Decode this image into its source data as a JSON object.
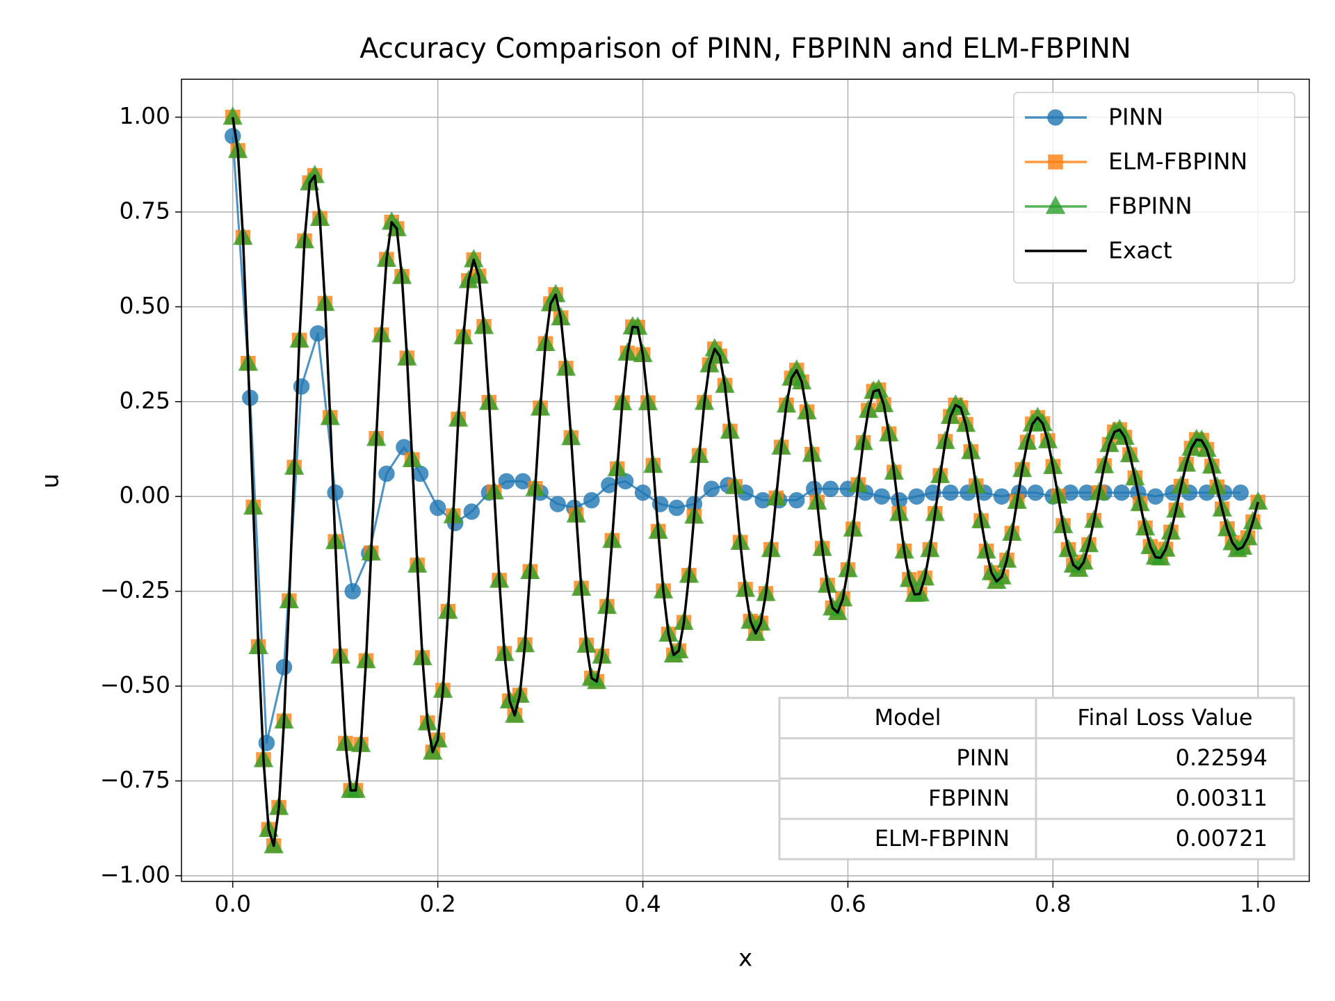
{
  "chart_data": {
    "type": "line",
    "title": "Accuracy Comparison of PINN, FBPINN and ELM-FBPINN",
    "xlabel": "x",
    "ylabel": "u",
    "xlim": [
      -0.05,
      1.05
    ],
    "ylim": [
      -1.015,
      1.1
    ],
    "xticks": [
      {
        "value": 0,
        "label": "0.0"
      },
      {
        "value": 0.2,
        "label": "0.2"
      },
      {
        "value": 0.4,
        "label": "0.4"
      },
      {
        "value": 0.6,
        "label": "0.6"
      },
      {
        "value": 0.8,
        "label": "0.8"
      },
      {
        "value": 1,
        "label": "1.0"
      }
    ],
    "yticks": [
      {
        "value": -1,
        "label": "−1.00"
      },
      {
        "value": -0.75,
        "label": "−0.75"
      },
      {
        "value": -0.5,
        "label": "−0.50"
      },
      {
        "value": -0.25,
        "label": "−0.25"
      },
      {
        "value": 0,
        "label": "0.00"
      },
      {
        "value": 0.25,
        "label": "0.25"
      },
      {
        "value": 0.5,
        "label": "0.50"
      },
      {
        "value": 0.75,
        "label": "0.75"
      },
      {
        "value": 1,
        "label": "1.00"
      }
    ],
    "grid": true,
    "legend": "upper right",
    "x": [
      0,
      0.005,
      0.01,
      0.015,
      0.02,
      0.025,
      0.03,
      0.035,
      0.04,
      0.045,
      0.05,
      0.055,
      0.06,
      0.065,
      0.07,
      0.075,
      0.08,
      0.085,
      0.09,
      0.095,
      0.1,
      0.105,
      0.11,
      0.115,
      0.12,
      0.125,
      0.13,
      0.135,
      0.14,
      0.145,
      0.15,
      0.155,
      0.16,
      0.165,
      0.17,
      0.175,
      0.18,
      0.185,
      0.19,
      0.195,
      0.2,
      0.205,
      0.21,
      0.215,
      0.22,
      0.225,
      0.23,
      0.235,
      0.24,
      0.245,
      0.25,
      0.255,
      0.26,
      0.265,
      0.27,
      0.275,
      0.28,
      0.285,
      0.29,
      0.295,
      0.3,
      0.305,
      0.31,
      0.315,
      0.32,
      0.325,
      0.33,
      0.335,
      0.34,
      0.345,
      0.35,
      0.355,
      0.36,
      0.365,
      0.37,
      0.375,
      0.38,
      0.385,
      0.39,
      0.395,
      0.4,
      0.405,
      0.41,
      0.415,
      0.42,
      0.425,
      0.43,
      0.435,
      0.44,
      0.445,
      0.45,
      0.455,
      0.46,
      0.465,
      0.47,
      0.475,
      0.48,
      0.485,
      0.49,
      0.495,
      0.5,
      0.505,
      0.51,
      0.515,
      0.52,
      0.525,
      0.53,
      0.535,
      0.54,
      0.545,
      0.55,
      0.555,
      0.56,
      0.565,
      0.57,
      0.575,
      0.58,
      0.585,
      0.59,
      0.595,
      0.6,
      0.605,
      0.61,
      0.615,
      0.62,
      0.625,
      0.63,
      0.635,
      0.64,
      0.645,
      0.65,
      0.655,
      0.66,
      0.665,
      0.67,
      0.675,
      0.68,
      0.685,
      0.69,
      0.695,
      0.7,
      0.705,
      0.71,
      0.715,
      0.72,
      0.725,
      0.73,
      0.735,
      0.74,
      0.745,
      0.75,
      0.755,
      0.76,
      0.765,
      0.77,
      0.775,
      0.78,
      0.785,
      0.79,
      0.795,
      0.8,
      0.805,
      0.81,
      0.815,
      0.82,
      0.825,
      0.83,
      0.835,
      0.84,
      0.845,
      0.85,
      0.855,
      0.86,
      0.865,
      0.87,
      0.875,
      0.88,
      0.885,
      0.89,
      0.895,
      0.9,
      0.905,
      0.91,
      0.915,
      0.92,
      0.925,
      0.93,
      0.935,
      0.94,
      0.945,
      0.95,
      0.955,
      0.96,
      0.965,
      0.97,
      0.975,
      0.98,
      0.985,
      0.99,
      0.995,
      1
    ],
    "series": [
      {
        "name": "PINN",
        "color": "#1f77b4",
        "marker": "circle",
        "x": [
          0,
          0.017,
          0.033,
          0.05,
          0.067,
          0.083,
          0.1,
          0.117,
          0.133,
          0.15,
          0.167,
          0.183,
          0.2,
          0.217,
          0.233,
          0.25,
          0.267,
          0.283,
          0.3,
          0.317,
          0.333,
          0.35,
          0.367,
          0.383,
          0.4,
          0.417,
          0.433,
          0.45,
          0.467,
          0.483,
          0.5,
          0.517,
          0.533,
          0.55,
          0.567,
          0.583,
          0.6,
          0.617,
          0.633,
          0.65,
          0.667,
          0.683,
          0.7,
          0.717,
          0.733,
          0.75,
          0.767,
          0.783,
          0.8,
          0.817,
          0.833,
          0.85,
          0.867,
          0.883,
          0.9,
          0.917,
          0.933,
          0.95,
          0.967,
          0.983
        ],
        "values": [
          0.95,
          0.26,
          -0.65,
          -0.45,
          0.29,
          0.43,
          0.01,
          -0.25,
          -0.15,
          0.06,
          0.13,
          0.06,
          -0.03,
          -0.07,
          -0.04,
          0.01,
          0.04,
          0.04,
          0.01,
          -0.02,
          -0.03,
          -0.01,
          0.03,
          0.04,
          0.01,
          -0.02,
          -0.03,
          -0.02,
          0.02,
          0.03,
          0.01,
          -0.01,
          -0.01,
          -0.01,
          0.02,
          0.02,
          0.02,
          0.01,
          0,
          -0.01,
          0,
          0.01,
          0.01,
          0.01,
          0.01,
          0,
          0.01,
          0.01,
          0,
          0.01,
          0.01,
          0.01,
          0.01,
          0.01,
          0,
          0.01,
          0.01,
          0.01,
          0.01,
          0.01
        ]
      },
      {
        "name": "ELM-FBPINN",
        "color": "#ff7f0e",
        "marker": "square",
        "values": [
          1,
          0.912,
          0.683,
          0.351,
          -0.028,
          -0.396,
          -0.694,
          -0.878,
          -0.921,
          -0.82,
          -0.592,
          -0.275,
          0.077,
          0.412,
          0.674,
          0.827,
          0.846,
          0.733,
          0.509,
          0.208,
          -0.119,
          -0.421,
          -0.651,
          -0.775,
          -0.775,
          -0.654,
          -0.433,
          -0.149,
          0.153,
          0.426,
          0.625,
          0.723,
          0.706,
          0.58,
          0.365,
          0.097,
          -0.181,
          -0.425,
          -0.597,
          -0.674,
          -0.642,
          -0.511,
          -0.303,
          -0.051,
          0.204,
          0.421,
          0.569,
          0.624,
          0.581,
          0.448,
          0.248,
          0.012,
          -0.221,
          -0.414,
          -0.539,
          -0.577,
          -0.524,
          -0.391,
          -0.198,
          0.021,
          0.233,
          0.403,
          0.508,
          0.532,
          0.471,
          0.338,
          0.155,
          -0.049,
          -0.242,
          -0.392,
          -0.479,
          -0.488,
          -0.421,
          -0.29,
          -0.116,
          0.073,
          0.247,
          0.378,
          0.447,
          0.446,
          0.374,
          0.247,
          0.082,
          -0.092,
          -0.249,
          -0.363,
          -0.418,
          -0.407,
          -0.332,
          -0.208,
          -0.052,
          0.108,
          0.248,
          0.347,
          0.389,
          0.37,
          0.293,
          0.172,
          0.026,
          -0.121,
          -0.245,
          -0.329,
          -0.361,
          -0.334,
          -0.256,
          -0.14,
          -0.004,
          0.13,
          0.241,
          0.312,
          0.333,
          0.302,
          0.223,
          0.111,
          -0.015,
          -0.137,
          -0.234,
          -0.294,
          -0.306,
          -0.27,
          -0.193,
          -0.086,
          0.031,
          0.142,
          0.227,
          0.277,
          0.281,
          0.242,
          0.165,
          0.064,
          -0.045,
          -0.144,
          -0.219,
          -0.258,
          -0.257,
          -0.215,
          -0.14,
          -0.045,
          0.055,
          0.145,
          0.211,
          0.241,
          0.234,
          0.19,
          0.118,
          0.028,
          -0.064,
          -0.144,
          -0.201,
          -0.224,
          -0.212,
          -0.168,
          -0.097,
          -0.013,
          0.071,
          0.143,
          0.191,
          0.208,
          0.192,
          0.147,
          0.079,
          0.001,
          -0.077,
          -0.14,
          -0.181,
          -0.192,
          -0.173,
          -0.127,
          -0.063,
          0.01,
          0.081,
          0.137,
          0.17,
          0.176,
          0.156,
          0.11,
          0.049,
          -0.019,
          -0.083,
          -0.132,
          -0.16,
          -0.162,
          -0.139,
          -0.094,
          -0.036,
          0.027,
          0.085,
          0.127,
          0.15,
          0.148,
          0.124,
          0.08,
          0.025,
          -0.033,
          -0.085,
          -0.122,
          -0.14,
          -0.134,
          -0.109,
          -0.067,
          -0.015
        ]
      },
      {
        "name": "FBPINN",
        "color": "#2ca02c",
        "marker": "triangle",
        "values": [
          1,
          0.912,
          0.683,
          0.351,
          -0.028,
          -0.396,
          -0.694,
          -0.878,
          -0.921,
          -0.82,
          -0.592,
          -0.275,
          0.077,
          0.412,
          0.674,
          0.827,
          0.846,
          0.733,
          0.509,
          0.208,
          -0.119,
          -0.421,
          -0.651,
          -0.775,
          -0.775,
          -0.654,
          -0.433,
          -0.149,
          0.153,
          0.426,
          0.625,
          0.723,
          0.706,
          0.58,
          0.365,
          0.097,
          -0.181,
          -0.425,
          -0.597,
          -0.674,
          -0.642,
          -0.511,
          -0.303,
          -0.051,
          0.204,
          0.421,
          0.569,
          0.624,
          0.581,
          0.448,
          0.248,
          0.012,
          -0.221,
          -0.414,
          -0.539,
          -0.577,
          -0.524,
          -0.391,
          -0.198,
          0.021,
          0.233,
          0.403,
          0.508,
          0.532,
          0.471,
          0.338,
          0.155,
          -0.049,
          -0.242,
          -0.392,
          -0.479,
          -0.488,
          -0.421,
          -0.29,
          -0.116,
          0.073,
          0.247,
          0.378,
          0.447,
          0.446,
          0.374,
          0.247,
          0.082,
          -0.092,
          -0.249,
          -0.363,
          -0.418,
          -0.407,
          -0.332,
          -0.208,
          -0.052,
          0.108,
          0.248,
          0.347,
          0.389,
          0.37,
          0.293,
          0.172,
          0.026,
          -0.121,
          -0.245,
          -0.329,
          -0.361,
          -0.334,
          -0.256,
          -0.14,
          -0.004,
          0.13,
          0.241,
          0.312,
          0.333,
          0.302,
          0.223,
          0.111,
          -0.015,
          -0.137,
          -0.234,
          -0.294,
          -0.306,
          -0.27,
          -0.193,
          -0.086,
          0.031,
          0.142,
          0.227,
          0.277,
          0.281,
          0.242,
          0.165,
          0.064,
          -0.045,
          -0.144,
          -0.219,
          -0.258,
          -0.257,
          -0.215,
          -0.14,
          -0.045,
          0.055,
          0.145,
          0.211,
          0.241,
          0.234,
          0.19,
          0.118,
          0.028,
          -0.064,
          -0.144,
          -0.201,
          -0.224,
          -0.212,
          -0.168,
          -0.097,
          -0.013,
          0.071,
          0.143,
          0.191,
          0.208,
          0.192,
          0.147,
          0.079,
          0.001,
          -0.077,
          -0.14,
          -0.181,
          -0.192,
          -0.173,
          -0.127,
          -0.063,
          0.01,
          0.081,
          0.137,
          0.17,
          0.176,
          0.156,
          0.11,
          0.049,
          -0.019,
          -0.083,
          -0.132,
          -0.16,
          -0.162,
          -0.139,
          -0.094,
          -0.036,
          0.027,
          0.085,
          0.127,
          0.15,
          0.148,
          0.124,
          0.08,
          0.025,
          -0.033,
          -0.085,
          -0.122,
          -0.14,
          -0.134,
          -0.109,
          -0.067,
          -0.015
        ]
      },
      {
        "name": "Exact",
        "color": "#000000",
        "marker": "none",
        "values": [
          1,
          0.912,
          0.683,
          0.351,
          -0.028,
          -0.396,
          -0.694,
          -0.878,
          -0.921,
          -0.82,
          -0.592,
          -0.275,
          0.077,
          0.412,
          0.674,
          0.827,
          0.846,
          0.733,
          0.509,
          0.208,
          -0.119,
          -0.421,
          -0.651,
          -0.775,
          -0.775,
          -0.654,
          -0.433,
          -0.149,
          0.153,
          0.426,
          0.625,
          0.723,
          0.706,
          0.58,
          0.365,
          0.097,
          -0.181,
          -0.425,
          -0.597,
          -0.674,
          -0.642,
          -0.511,
          -0.303,
          -0.051,
          0.204,
          0.421,
          0.569,
          0.624,
          0.581,
          0.448,
          0.248,
          0.012,
          -0.221,
          -0.414,
          -0.539,
          -0.577,
          -0.524,
          -0.391,
          -0.198,
          0.021,
          0.233,
          0.403,
          0.508,
          0.532,
          0.471,
          0.338,
          0.155,
          -0.049,
          -0.242,
          -0.392,
          -0.479,
          -0.488,
          -0.421,
          -0.29,
          -0.116,
          0.073,
          0.247,
          0.378,
          0.447,
          0.446,
          0.374,
          0.247,
          0.082,
          -0.092,
          -0.249,
          -0.363,
          -0.418,
          -0.407,
          -0.332,
          -0.208,
          -0.052,
          0.108,
          0.248,
          0.347,
          0.389,
          0.37,
          0.293,
          0.172,
          0.026,
          -0.121,
          -0.245,
          -0.329,
          -0.361,
          -0.334,
          -0.256,
          -0.14,
          -0.004,
          0.13,
          0.241,
          0.312,
          0.333,
          0.302,
          0.223,
          0.111,
          -0.015,
          -0.137,
          -0.234,
          -0.294,
          -0.306,
          -0.27,
          -0.193,
          -0.086,
          0.031,
          0.142,
          0.227,
          0.277,
          0.281,
          0.242,
          0.165,
          0.064,
          -0.045,
          -0.144,
          -0.219,
          -0.258,
          -0.257,
          -0.215,
          -0.14,
          -0.045,
          0.055,
          0.145,
          0.211,
          0.241,
          0.234,
          0.19,
          0.118,
          0.028,
          -0.064,
          -0.144,
          -0.201,
          -0.224,
          -0.212,
          -0.168,
          -0.097,
          -0.013,
          0.071,
          0.143,
          0.191,
          0.208,
          0.192,
          0.147,
          0.079,
          0.001,
          -0.077,
          -0.14,
          -0.181,
          -0.192,
          -0.173,
          -0.127,
          -0.063,
          0.01,
          0.081,
          0.137,
          0.17,
          0.176,
          0.156,
          0.11,
          0.049,
          -0.019,
          -0.083,
          -0.132,
          -0.16,
          -0.162,
          -0.139,
          -0.094,
          -0.036,
          0.027,
          0.085,
          0.127,
          0.15,
          0.148,
          0.124,
          0.08,
          0.025,
          -0.033,
          -0.085,
          -0.122,
          -0.14,
          -0.134,
          -0.109,
          -0.067,
          -0.015
        ]
      }
    ],
    "table": {
      "columns": [
        "Model",
        "Final Loss Value"
      ],
      "rows": [
        [
          "PINN",
          "0.22594"
        ],
        [
          "FBPINN",
          "0.00311"
        ],
        [
          "ELM-FBPINN",
          "0.00721"
        ]
      ]
    }
  }
}
